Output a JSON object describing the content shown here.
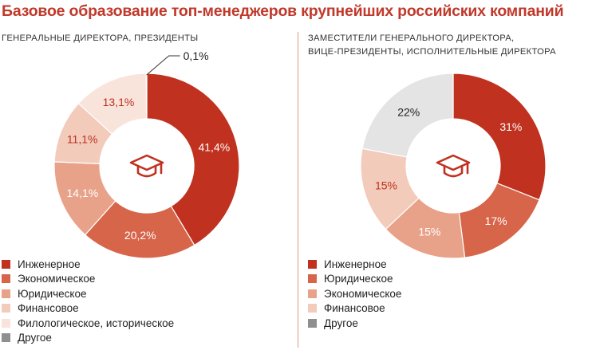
{
  "title": "Базовое образование топ-менеджеров крупнейших российских компаний",
  "chart_data": [
    {
      "type": "pie",
      "donut": true,
      "title_lines": [
        "ГЕНЕРАЛЬНЫЕ ДИРЕКТОРА, ПРЕЗИДЕНТЫ"
      ],
      "center_icon": "graduation-cap-icon",
      "legend_position": "bottom-left",
      "slices": [
        {
          "label": "Инженерное",
          "value": 41.4,
          "value_label": "41,4%",
          "color": "#c0311f",
          "label_color": "#ffffff"
        },
        {
          "label": "Экономическое",
          "value": 20.2,
          "value_label": "20,2%",
          "color": "#d6654a",
          "label_color": "#ffffff"
        },
        {
          "label": "Юридическое",
          "value": 14.1,
          "value_label": "14,1%",
          "color": "#e8a28a",
          "label_color": "#ffffff"
        },
        {
          "label": "Финансовое",
          "value": 11.1,
          "value_label": "11,1%",
          "color": "#f2cbbb",
          "label_color": "#c0311f"
        },
        {
          "label": "Филологическое, историческое",
          "value": 13.1,
          "value_label": "13,1%",
          "color": "#f8e4da",
          "label_color": "#c0311f"
        },
        {
          "label": "Другое",
          "value": 0.1,
          "value_label": "0,1%",
          "color": "#8f8f8f",
          "label_color": "#222222",
          "callout": true
        }
      ]
    },
    {
      "type": "pie",
      "donut": true,
      "title_lines": [
        "ЗАМЕСТИТЕЛИ ГЕНЕРАЛЬНОГО ДИРЕКТОРА,",
        "ВИЦЕ-ПРЕЗИДЕНТЫ, ИСПОЛНИТЕЛЬНЫЕ ДИРЕКТОРА"
      ],
      "center_icon": "graduation-cap-icon",
      "legend_position": "bottom-left",
      "slices": [
        {
          "label": "Инженерное",
          "value": 31,
          "value_label": "31%",
          "color": "#c0311f",
          "label_color": "#ffffff"
        },
        {
          "label": "Юридическое",
          "value": 17,
          "value_label": "17%",
          "color": "#d6654a",
          "label_color": "#ffffff"
        },
        {
          "label": "Экономическое",
          "value": 15,
          "value_label": "15%",
          "color": "#e8a28a",
          "label_color": "#ffffff"
        },
        {
          "label": "Финансовое",
          "value": 15,
          "value_label": "15%",
          "color": "#f2cbbb",
          "label_color": "#c0311f"
        },
        {
          "label": "Другое",
          "value": 22,
          "value_label": "22%",
          "color": "#e4e4e4",
          "label_color": "#222222"
        }
      ],
      "legend": [
        {
          "label": "Инженерное",
          "color": "#c0311f"
        },
        {
          "label": "Юридическое",
          "color": "#d6654a"
        },
        {
          "label": "Экономическое",
          "color": "#e8a28a"
        },
        {
          "label": "Финансовое",
          "color": "#f2cbbb"
        },
        {
          "label": "Другое",
          "color": "#8f8f8f"
        }
      ]
    }
  ]
}
